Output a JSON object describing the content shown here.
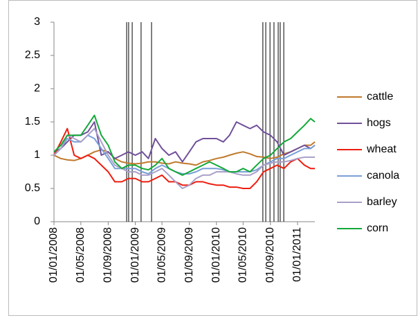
{
  "chart_data": {
    "type": "line",
    "x": [
      "01/01/2008",
      "01/02/2008",
      "01/03/2008",
      "01/04/2008",
      "01/05/2008",
      "01/06/2008",
      "01/07/2008",
      "01/08/2008",
      "01/09/2008",
      "01/10/2008",
      "01/11/2008",
      "01/12/2008",
      "01/01/2009",
      "01/02/2009",
      "01/03/2009",
      "01/04/2009",
      "01/05/2009",
      "01/06/2009",
      "01/07/2009",
      "01/08/2009",
      "01/09/2009",
      "01/10/2009",
      "01/11/2009",
      "01/12/2009",
      "01/01/2010",
      "01/02/2010",
      "01/03/2010",
      "01/04/2010",
      "01/05/2010",
      "01/06/2010",
      "01/07/2010",
      "01/08/2010",
      "01/09/2010",
      "01/10/2010",
      "01/11/2010",
      "01/12/2010",
      "01/01/2011",
      "01/02/2011",
      "01/03/2011",
      "20/03/2011"
    ],
    "series": [
      {
        "name": "cattle",
        "color": "#c0792b",
        "values": [
          1.0,
          0.95,
          0.93,
          0.92,
          0.95,
          1.0,
          1.05,
          1.08,
          1.05,
          0.95,
          0.9,
          0.88,
          0.87,
          0.88,
          0.9,
          0.9,
          0.88,
          0.87,
          0.9,
          0.88,
          0.87,
          0.85,
          0.9,
          0.92,
          0.95,
          0.97,
          1.0,
          1.03,
          1.05,
          1.02,
          0.98,
          0.97,
          0.95,
          0.97,
          1.02,
          1.05,
          1.1,
          1.15,
          1.15,
          1.2
        ]
      },
      {
        "name": "hogs",
        "color": "#70509a",
        "values": [
          1.05,
          1.1,
          1.2,
          1.3,
          1.3,
          1.35,
          1.5,
          1.0,
          1.05,
          0.95,
          1.0,
          1.05,
          1.0,
          1.05,
          0.95,
          1.25,
          1.1,
          1.0,
          1.05,
          0.9,
          1.05,
          1.2,
          1.25,
          1.25,
          1.25,
          1.2,
          1.3,
          1.5,
          1.45,
          1.4,
          1.45,
          1.35,
          1.3,
          1.2,
          1.0,
          1.05,
          1.1,
          1.15,
          1.1,
          1.15
        ]
      },
      {
        "name": "wheat",
        "color": "#ee1c0e",
        "values": [
          1.0,
          1.2,
          1.4,
          1.0,
          0.95,
          1.0,
          0.95,
          0.85,
          0.75,
          0.6,
          0.6,
          0.65,
          0.65,
          0.6,
          0.6,
          0.65,
          0.7,
          0.6,
          0.6,
          0.55,
          0.55,
          0.6,
          0.6,
          0.57,
          0.55,
          0.55,
          0.52,
          0.52,
          0.5,
          0.5,
          0.6,
          0.75,
          0.8,
          0.85,
          0.8,
          0.9,
          0.95,
          0.85,
          0.8,
          0.8
        ]
      },
      {
        "name": "canola",
        "color": "#7a9fd6",
        "values": [
          1.0,
          1.1,
          1.25,
          1.2,
          1.2,
          1.3,
          1.25,
          1.1,
          0.95,
          0.8,
          0.8,
          0.8,
          0.8,
          0.75,
          0.72,
          0.8,
          0.85,
          0.8,
          0.75,
          0.72,
          0.72,
          0.75,
          0.8,
          0.8,
          0.8,
          0.78,
          0.75,
          0.75,
          0.75,
          0.75,
          0.78,
          0.85,
          0.9,
          0.95,
          0.95,
          1.0,
          1.05,
          1.1,
          1.1,
          1.15
        ]
      },
      {
        "name": "barley",
        "color": "#a99fc8",
        "values": [
          1.0,
          1.1,
          1.3,
          1.25,
          1.2,
          1.3,
          1.4,
          1.2,
          1.0,
          0.85,
          0.8,
          0.75,
          0.75,
          0.7,
          0.7,
          0.75,
          0.8,
          0.7,
          0.6,
          0.5,
          0.55,
          0.65,
          0.7,
          0.7,
          0.75,
          0.75,
          0.75,
          0.72,
          0.7,
          0.7,
          0.75,
          0.85,
          0.88,
          0.9,
          0.9,
          0.92,
          0.95,
          0.97,
          0.97,
          0.97
        ]
      },
      {
        "name": "corn",
        "color": "#12a838",
        "values": [
          1.05,
          1.15,
          1.3,
          1.3,
          1.3,
          1.45,
          1.6,
          1.3,
          1.15,
          0.9,
          0.8,
          0.85,
          0.85,
          0.8,
          0.78,
          0.85,
          0.95,
          0.8,
          0.75,
          0.7,
          0.75,
          0.8,
          0.85,
          0.9,
          0.85,
          0.8,
          0.75,
          0.75,
          0.8,
          0.75,
          0.85,
          0.95,
          1.0,
          1.1,
          1.2,
          1.25,
          1.35,
          1.45,
          1.55,
          1.5
        ]
      }
    ],
    "vlines": [
      "23/11/2008",
      "02/12/2008",
      "18/12/2008",
      "27/01/2009",
      "15/03/2009",
      "29/07/2010",
      "11/08/2010",
      "30/08/2010",
      "17/09/2010",
      "06/10/2010",
      "15/10/2010",
      "31/10/2010"
    ],
    "vline_color": "#000000",
    "xlim": [
      "01/01/2008",
      "20/03/2011"
    ],
    "xticks": [
      "01/01/2008",
      "01/05/2008",
      "01/09/2008",
      "01/01/2009",
      "01/05/2009",
      "01/09/2009",
      "01/01/2010",
      "01/05/2010",
      "01/09/2010",
      "01/01/2011"
    ],
    "ylim": [
      0,
      3
    ],
    "yticks": [
      0,
      0.5,
      1,
      1.5,
      2,
      2.5,
      3
    ],
    "grid": false,
    "legend": "right"
  }
}
